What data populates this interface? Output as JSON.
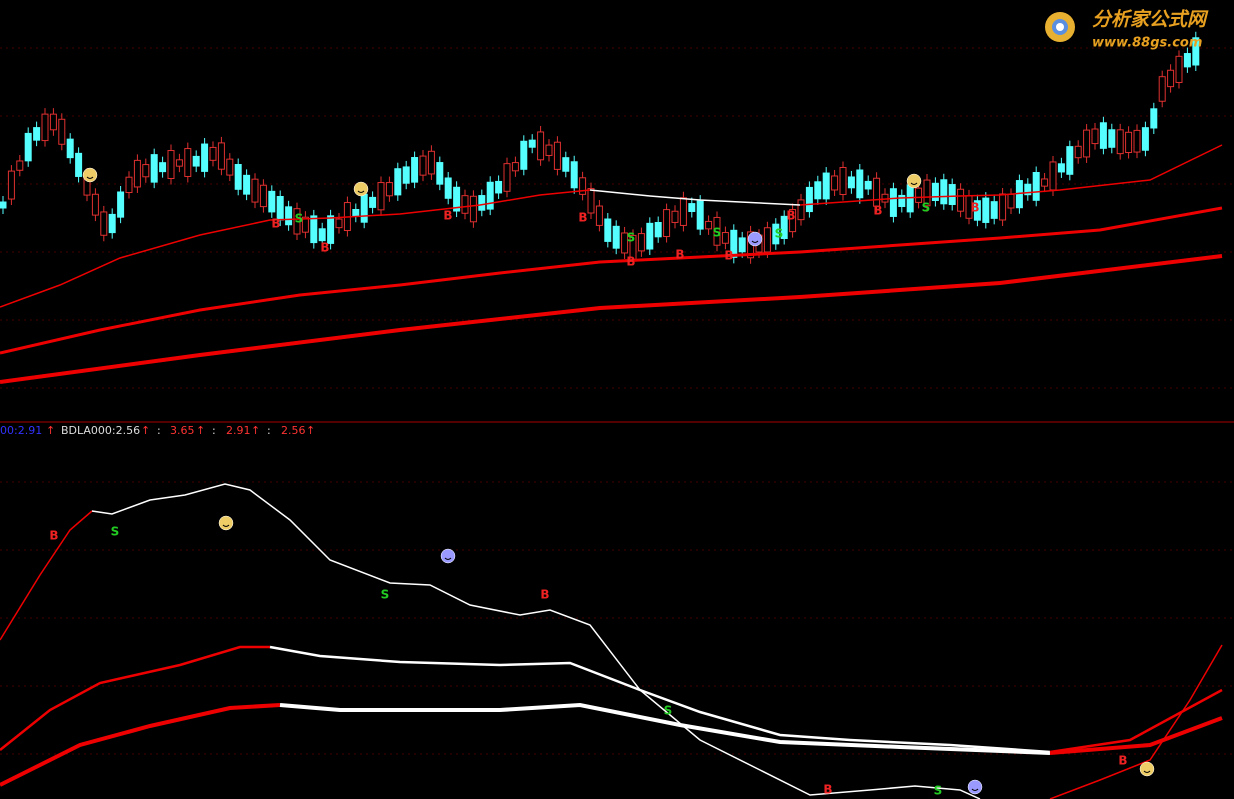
{
  "watermark": {
    "title": "分析家公式网",
    "url": "www.88gs.com"
  },
  "indicator_bar": {
    "items": [
      {
        "text": "00:2.91",
        "arrow": "↑"
      },
      {
        "text": "BDLA000:2.56",
        "arrow": "↑"
      },
      {
        "text": ":",
        "value": "3.65",
        "arrow": "↑"
      },
      {
        "text": ":",
        "value": "2.91",
        "arrow": "↑"
      },
      {
        "text": ":",
        "value": "2.56",
        "arrow": "↑"
      }
    ]
  },
  "upper_panel": {
    "markers": [
      "B",
      "S",
      "B",
      "B",
      "B",
      "B",
      "S",
      "B",
      "S",
      "B",
      "S",
      "B",
      "B",
      "S",
      "B"
    ]
  },
  "lower_panel": {
    "markers": [
      "B",
      "S",
      "S",
      "B",
      "S",
      "B",
      "S",
      "B"
    ]
  }
}
